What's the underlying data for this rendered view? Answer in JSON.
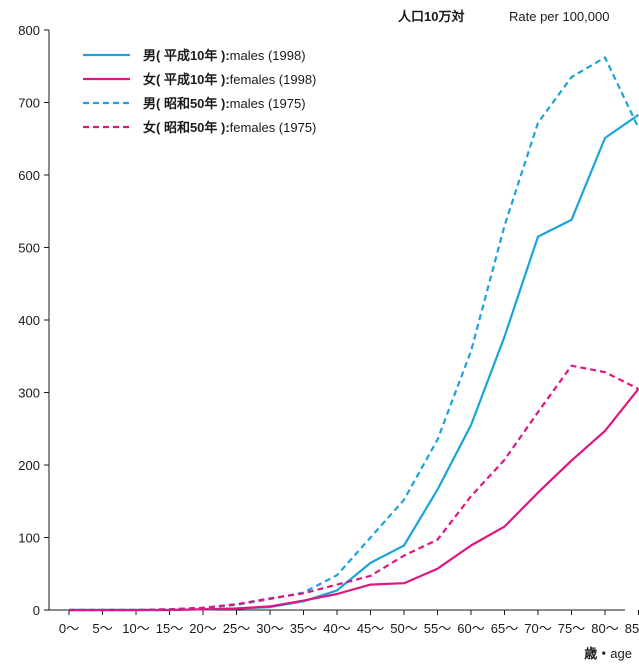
{
  "chart_data": {
    "type": "line",
    "y_unit_label_jp": "人口10万対",
    "y_unit_label_en": "Rate per 100,000",
    "x_label_jp": "歳・",
    "x_label_en": "age",
    "categories": [
      "0～",
      "5～",
      "10～",
      "15～",
      "20～",
      "25～",
      "30～",
      "35～",
      "40～",
      "45～",
      "50～",
      "55～",
      "60～",
      "65～",
      "70～",
      "75～",
      "80～",
      "85～"
    ],
    "ylim": [
      0,
      800
    ],
    "yticks": [
      0,
      100,
      200,
      300,
      400,
      500,
      600,
      700,
      800
    ],
    "grid": false,
    "legend_position": "top-left",
    "series": [
      {
        "name_jp": "男( 平成10年 ):",
        "name_en": "males (1998)",
        "color": "#1aa3dd",
        "dash": "solid",
        "values": [
          0,
          0,
          0,
          0,
          1,
          2,
          4,
          12,
          27,
          65,
          89,
          166,
          255,
          377,
          515,
          538,
          651,
          683
        ]
      },
      {
        "name_jp": "女( 平成10年 ):",
        "name_en": "females (1998)",
        "color": "#e0157f",
        "dash": "solid",
        "values": [
          0,
          0,
          0,
          0,
          1,
          2,
          5,
          13,
          22,
          35,
          37,
          57,
          89,
          115,
          162,
          206,
          247,
          305
        ]
      },
      {
        "name_jp": "男( 昭和50年 ):",
        "name_en": "males (1975)",
        "color": "#1aa3dd",
        "dash": "dashed",
        "values": [
          0,
          0,
          0,
          1,
          3,
          7,
          15,
          24,
          48,
          100,
          152,
          235,
          357,
          530,
          672,
          735,
          762,
          665
        ]
      },
      {
        "name_jp": "女( 昭和50年 ):",
        "name_en": "females (1975)",
        "color": "#e0157f",
        "dash": "dashed",
        "values": [
          0,
          0,
          0,
          1,
          3,
          8,
          16,
          23,
          35,
          47,
          75,
          97,
          157,
          207,
          273,
          337,
          328,
          305
        ]
      }
    ]
  }
}
